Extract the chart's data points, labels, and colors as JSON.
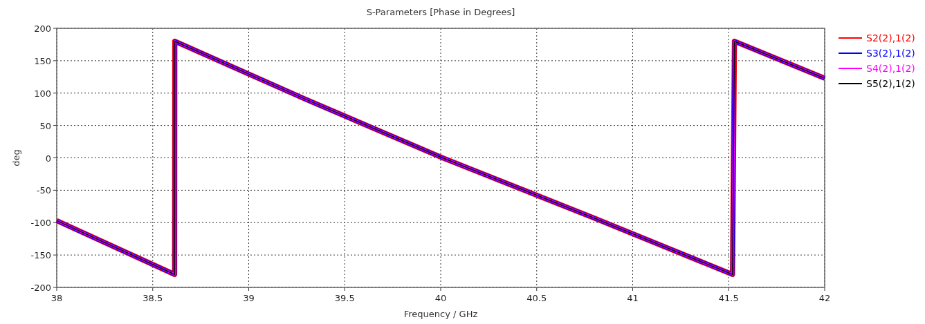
{
  "chart_data": {
    "type": "line",
    "title": "S-Parameters [Phase in Degrees]",
    "xlabel": "Frequency / GHz",
    "ylabel": "deg",
    "xlim": [
      38,
      42
    ],
    "xticks": [
      38,
      38.5,
      39,
      39.5,
      40,
      40.5,
      41,
      41.5,
      42
    ],
    "ylim": [
      -200,
      200
    ],
    "yticks": [
      -200,
      -150,
      -100,
      -50,
      0,
      50,
      100,
      150,
      200
    ],
    "grid": true,
    "legend": "right",
    "line_style": "solid",
    "marker": "none",
    "series": [
      {
        "name": "S2(2),1(2)",
        "color": "#ff0000",
        "x": [
          38,
          38.614,
          38.615,
          39.3,
          40.01,
          40.8,
          41.52,
          41.53,
          42
        ],
        "values": [
          -97,
          -180,
          180,
          90,
          0,
          -93,
          -180,
          180,
          123
        ]
      },
      {
        "name": "S3(2),1(2)",
        "color": "#0000ff",
        "x": [
          38,
          38.614,
          38.615,
          39.3,
          40.01,
          40.8,
          41.52,
          41.53,
          42
        ],
        "values": [
          -97,
          -180,
          180,
          90,
          0,
          -93,
          -180,
          180,
          123
        ]
      },
      {
        "name": "S4(2),1(2)",
        "color": "#ff00ff",
        "x": [
          38,
          38.614,
          38.615,
          39.3,
          40.01,
          40.8,
          41.52,
          41.53,
          42
        ],
        "values": [
          -97,
          -180,
          180,
          90,
          0,
          -93,
          -180,
          180,
          123
        ]
      },
      {
        "name": "S5(2),1(2)",
        "color": "#000000",
        "x": [
          38,
          38.614,
          38.615,
          39.3,
          40.01,
          40.8,
          41.52,
          41.53,
          42
        ],
        "values": [
          -97,
          -180,
          180,
          90,
          0,
          -93,
          -180,
          180,
          123
        ]
      }
    ]
  }
}
